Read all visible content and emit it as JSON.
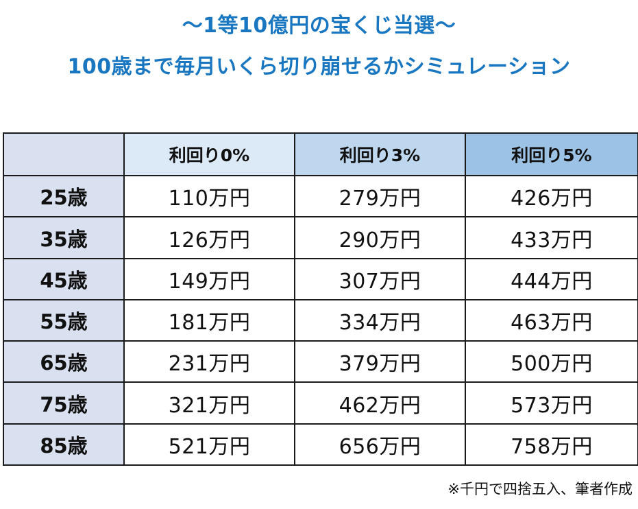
{
  "title_line1": "〜1等10億円の宝くじ当選〜",
  "title_line2": "100歳まで毎月いくら切り崩せるかシミュレーション",
  "table": {
    "headers": [
      "",
      "利回り0%",
      "利回り3%",
      "利回り5%"
    ],
    "rows": [
      {
        "age": "25歳",
        "cells": [
          "110万円",
          "279万円",
          "426万円"
        ]
      },
      {
        "age": "35歳",
        "cells": [
          "126万円",
          "290万円",
          "433万円"
        ]
      },
      {
        "age": "45歳",
        "cells": [
          "149万円",
          "307万円",
          "444万円"
        ]
      },
      {
        "age": "55歳",
        "cells": [
          "181万円",
          "334万円",
          "463万円"
        ]
      },
      {
        "age": "65歳",
        "cells": [
          "231万円",
          "379万円",
          "500万円"
        ]
      },
      {
        "age": "75歳",
        "cells": [
          "321万円",
          "462万円",
          "573万円"
        ]
      },
      {
        "age": "85歳",
        "cells": [
          "521万円",
          "656万円",
          "758万円"
        ]
      }
    ]
  },
  "note": "※千円で四捨五入、筆者作成",
  "colors": {
    "title": "#1877c0",
    "age_column": "#d9e0ef",
    "header_0": "#dce9f6",
    "header_3": "#bed6ee",
    "header_5": "#9cc2e6"
  }
}
